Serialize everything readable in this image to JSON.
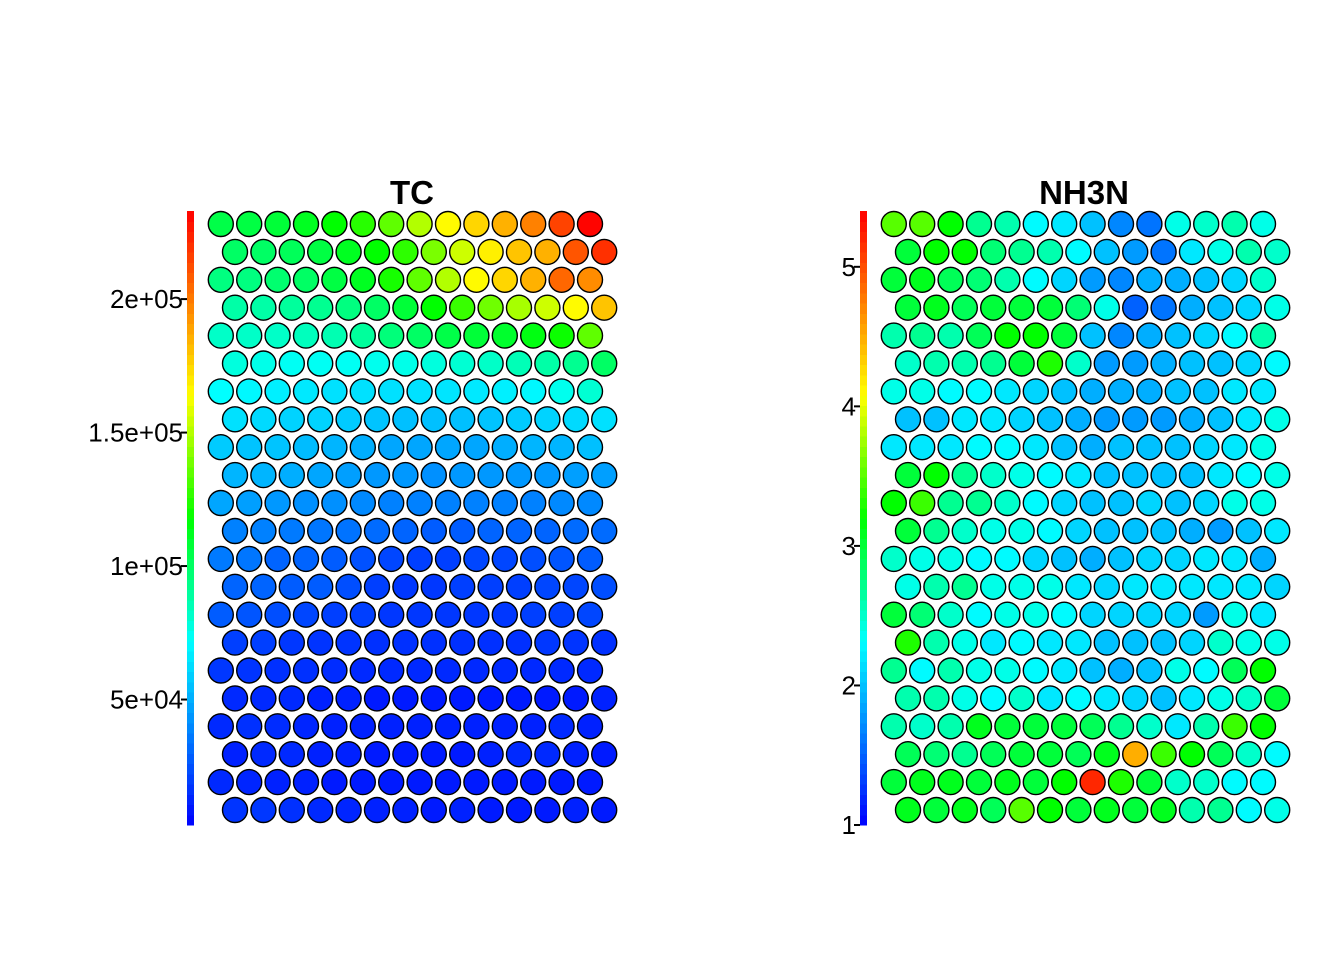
{
  "colorscale": [
    "#0000ff",
    "#0055ff",
    "#00aaff",
    "#00ffff",
    "#00ff80",
    "#00ff00",
    "#80ff00",
    "#ffff00",
    "#ffaa00",
    "#ff5500",
    "#ff0000"
  ],
  "chart_data": [
    {
      "type": "heatmap",
      "subtype": "som-hexagonal-property-map",
      "title": "TC",
      "grid": {
        "cols": 14,
        "rows": 22
      },
      "colorbar": {
        "min": 3000,
        "max": 233000,
        "ticks": [
          50000,
          100000,
          150000,
          200000
        ],
        "tick_labels": [
          "5e+04",
          "1e+05",
          "1.5e+05",
          "2e+05"
        ]
      },
      "values_note_source": "values estimated from cell colours",
      "values": [
        [
          17000,
          18000,
          16000,
          14000,
          13000,
          12000,
          12000,
          10000,
          12000,
          10000,
          10000,
          10000,
          12000,
          10000
        ],
        [
          14000,
          13000,
          12000,
          12000,
          10000,
          10000,
          10000,
          10000,
          10000,
          10000,
          10000,
          10000,
          10000,
          10000
        ],
        [
          12000,
          14000,
          14000,
          12000,
          12000,
          10000,
          10000,
          10000,
          10000,
          12000,
          14000,
          14000,
          12000,
          10000
        ],
        [
          14000,
          16000,
          15000,
          13000,
          12000,
          12000,
          12000,
          12000,
          12000,
          12000,
          12000,
          12000,
          14000,
          12000
        ],
        [
          14000,
          14000,
          14000,
          12000,
          12000,
          10000,
          10000,
          10000,
          10000,
          10000,
          10000,
          10000,
          10000,
          12000
        ],
        [
          18000,
          17000,
          16000,
          16000,
          15000,
          14000,
          14000,
          14000,
          14000,
          14000,
          14000,
          14000,
          14000,
          14000
        ],
        [
          20000,
          20000,
          18000,
          17000,
          17000,
          16000,
          16000,
          16000,
          16000,
          16000,
          16000,
          18000,
          17000,
          16000
        ],
        [
          28000,
          26000,
          24000,
          22000,
          20000,
          20000,
          18000,
          18000,
          18000,
          18000,
          18000,
          20000,
          20000,
          22000
        ],
        [
          30000,
          30000,
          28000,
          28000,
          24000,
          20000,
          18000,
          18000,
          20000,
          20000,
          20000,
          22000,
          22000,
          24000
        ],
        [
          36000,
          35000,
          30000,
          30000,
          28000,
          25000,
          22000,
          20000,
          20000,
          22000,
          22000,
          24000,
          26000,
          28000
        ],
        [
          38000,
          38000,
          36000,
          35000,
          34000,
          32000,
          30000,
          28000,
          28000,
          30000,
          30000,
          30000,
          32000,
          32000
        ],
        [
          48000,
          46000,
          44000,
          42000,
          42000,
          40000,
          38000,
          38000,
          38000,
          38000,
          38000,
          38000,
          40000,
          40000
        ],
        [
          52000,
          52000,
          50000,
          48000,
          46000,
          44000,
          44000,
          42000,
          44000,
          44000,
          44000,
          44000,
          46000,
          46000
        ],
        [
          58000,
          56000,
          56000,
          54000,
          52000,
          50000,
          48000,
          48000,
          48000,
          48000,
          50000,
          52000,
          52000,
          55000
        ],
        [
          64000,
          62000,
          60000,
          60000,
          58000,
          56000,
          55000,
          55000,
          55000,
          56000,
          58000,
          60000,
          62000,
          64000
        ],
        [
          72000,
          70000,
          68000,
          66000,
          64000,
          64000,
          64000,
          64000,
          65000,
          66000,
          68000,
          70000,
          75000,
          80000
        ],
        [
          78000,
          76000,
          74000,
          74000,
          74000,
          75000,
          76000,
          78000,
          80000,
          82000,
          85000,
          88000,
          92000,
          100000
        ],
        [
          82000,
          82000,
          82000,
          84000,
          86000,
          90000,
          96000,
          100000,
          105000,
          108000,
          110000,
          115000,
          120000,
          135000
        ],
        [
          88000,
          88000,
          90000,
          92000,
          95000,
          100000,
          108000,
          118000,
          128000,
          138000,
          148000,
          155000,
          165000,
          180000
        ],
        [
          95000,
          95000,
          98000,
          100000,
          106000,
          112000,
          122000,
          135000,
          150000,
          165000,
          175000,
          185000,
          205000,
          195000
        ],
        [
          100000,
          100000,
          102000,
          106000,
          112000,
          118000,
          126000,
          140000,
          155000,
          168000,
          180000,
          185000,
          210000,
          220000
        ],
        [
          105000,
          106000,
          108000,
          112000,
          118000,
          125000,
          135000,
          150000,
          165000,
          175000,
          185000,
          198000,
          215000,
          232000
        ]
      ]
    },
    {
      "type": "heatmap",
      "subtype": "som-hexagonal-property-map",
      "title": "NH3N",
      "grid": {
        "cols": 14,
        "rows": 22
      },
      "colorbar": {
        "min": 1.0,
        "max": 5.4,
        "ticks": [
          1,
          2,
          3,
          4,
          5
        ],
        "tick_labels": [
          "1",
          "2",
          "3",
          "4",
          "5"
        ]
      },
      "values_note_source": "values estimated from cell colours",
      "values": [
        [
          3.1,
          3.0,
          3.1,
          2.9,
          3.5,
          3.2,
          3.0,
          3.1,
          3.0,
          3.1,
          2.6,
          2.7,
          2.3,
          2.4
        ],
        [
          3.0,
          3.1,
          3.1,
          3.0,
          3.1,
          3.0,
          3.2,
          5.2,
          3.3,
          3.0,
          2.5,
          2.5,
          2.3,
          2.3
        ],
        [
          2.9,
          2.8,
          2.7,
          2.9,
          3.0,
          3.0,
          2.9,
          3.1,
          4.5,
          3.4,
          3.2,
          2.9,
          2.5,
          2.3
        ],
        [
          2.6,
          2.5,
          2.6,
          3.1,
          3.0,
          3.0,
          3.0,
          2.9,
          2.7,
          2.5,
          2.2,
          2.6,
          3.4,
          3.2
        ],
        [
          2.6,
          2.6,
          2.4,
          2.3,
          2.5,
          2.2,
          2.3,
          2.2,
          2.1,
          2.0,
          2.2,
          2.4,
          2.5,
          3.0
        ],
        [
          2.7,
          2.3,
          2.6,
          2.4,
          2.4,
          2.3,
          2.2,
          2.0,
          1.9,
          2.0,
          2.4,
          2.3,
          2.9,
          3.2
        ],
        [
          3.3,
          2.6,
          2.4,
          2.2,
          2.3,
          2.2,
          2.2,
          2.0,
          2.0,
          2.0,
          2.1,
          2.5,
          2.4,
          2.4
        ],
        [
          3.0,
          2.8,
          2.5,
          2.3,
          2.4,
          2.4,
          2.3,
          2.1,
          2.1,
          2.1,
          2.1,
          1.8,
          2.4,
          2.2
        ],
        [
          2.4,
          2.6,
          2.7,
          2.4,
          2.4,
          2.4,
          2.2,
          2.1,
          2.2,
          2.2,
          2.2,
          2.2,
          2.2,
          2.1
        ],
        [
          2.5,
          2.4,
          2.4,
          2.3,
          2.3,
          2.1,
          2.0,
          1.9,
          2.0,
          2.1,
          2.1,
          2.2,
          2.2,
          1.9
        ],
        [
          3.0,
          2.7,
          2.5,
          2.4,
          2.4,
          2.3,
          2.1,
          2.0,
          2.0,
          2.0,
          1.9,
          1.8,
          2.0,
          2.2
        ],
        [
          3.2,
          3.4,
          2.7,
          2.7,
          2.5,
          2.3,
          2.1,
          2.0,
          2.0,
          2.1,
          2.0,
          2.1,
          2.4,
          2.4
        ],
        [
          3.0,
          3.2,
          2.7,
          2.5,
          2.4,
          2.3,
          2.2,
          2.0,
          2.0,
          2.0,
          2.0,
          2.2,
          2.3,
          2.4
        ],
        [
          2.2,
          2.2,
          2.2,
          2.3,
          2.3,
          2.2,
          2.0,
          1.9,
          2.0,
          2.0,
          2.0,
          2.1,
          2.2,
          2.4
        ],
        [
          2.0,
          2.0,
          2.2,
          2.2,
          2.1,
          2.0,
          1.9,
          1.8,
          1.8,
          1.8,
          1.9,
          2.0,
          2.2,
          2.4
        ],
        [
          2.4,
          2.4,
          2.3,
          2.3,
          2.2,
          2.1,
          2.0,
          1.9,
          1.9,
          1.9,
          2.0,
          2.0,
          2.2,
          2.2
        ],
        [
          2.5,
          2.6,
          2.6,
          2.7,
          3.0,
          3.3,
          2.5,
          1.8,
          1.8,
          1.9,
          2.0,
          2.0,
          2.1,
          2.3
        ],
        [
          2.6,
          2.7,
          2.6,
          2.9,
          3.2,
          3.2,
          3.0,
          2.0,
          1.7,
          1.9,
          2.0,
          2.1,
          2.3,
          2.6
        ],
        [
          3.0,
          3.1,
          2.9,
          3.0,
          3.0,
          3.0,
          2.8,
          2.4,
          1.5,
          1.6,
          1.9,
          2.0,
          2.1,
          2.4
        ],
        [
          3.0,
          3.1,
          2.9,
          2.8,
          2.6,
          2.3,
          2.1,
          1.8,
          1.7,
          1.9,
          1.9,
          2.0,
          2.1,
          2.5
        ],
        [
          3.0,
          3.2,
          3.2,
          2.8,
          2.7,
          2.6,
          2.3,
          2.0,
          1.8,
          1.6,
          2.2,
          2.4,
          2.6,
          2.5
        ],
        [
          3.5,
          3.5,
          3.2,
          2.7,
          2.6,
          2.3,
          2.2,
          2.0,
          1.7,
          1.6,
          2.4,
          2.5,
          2.6,
          2.4
        ]
      ]
    }
  ]
}
